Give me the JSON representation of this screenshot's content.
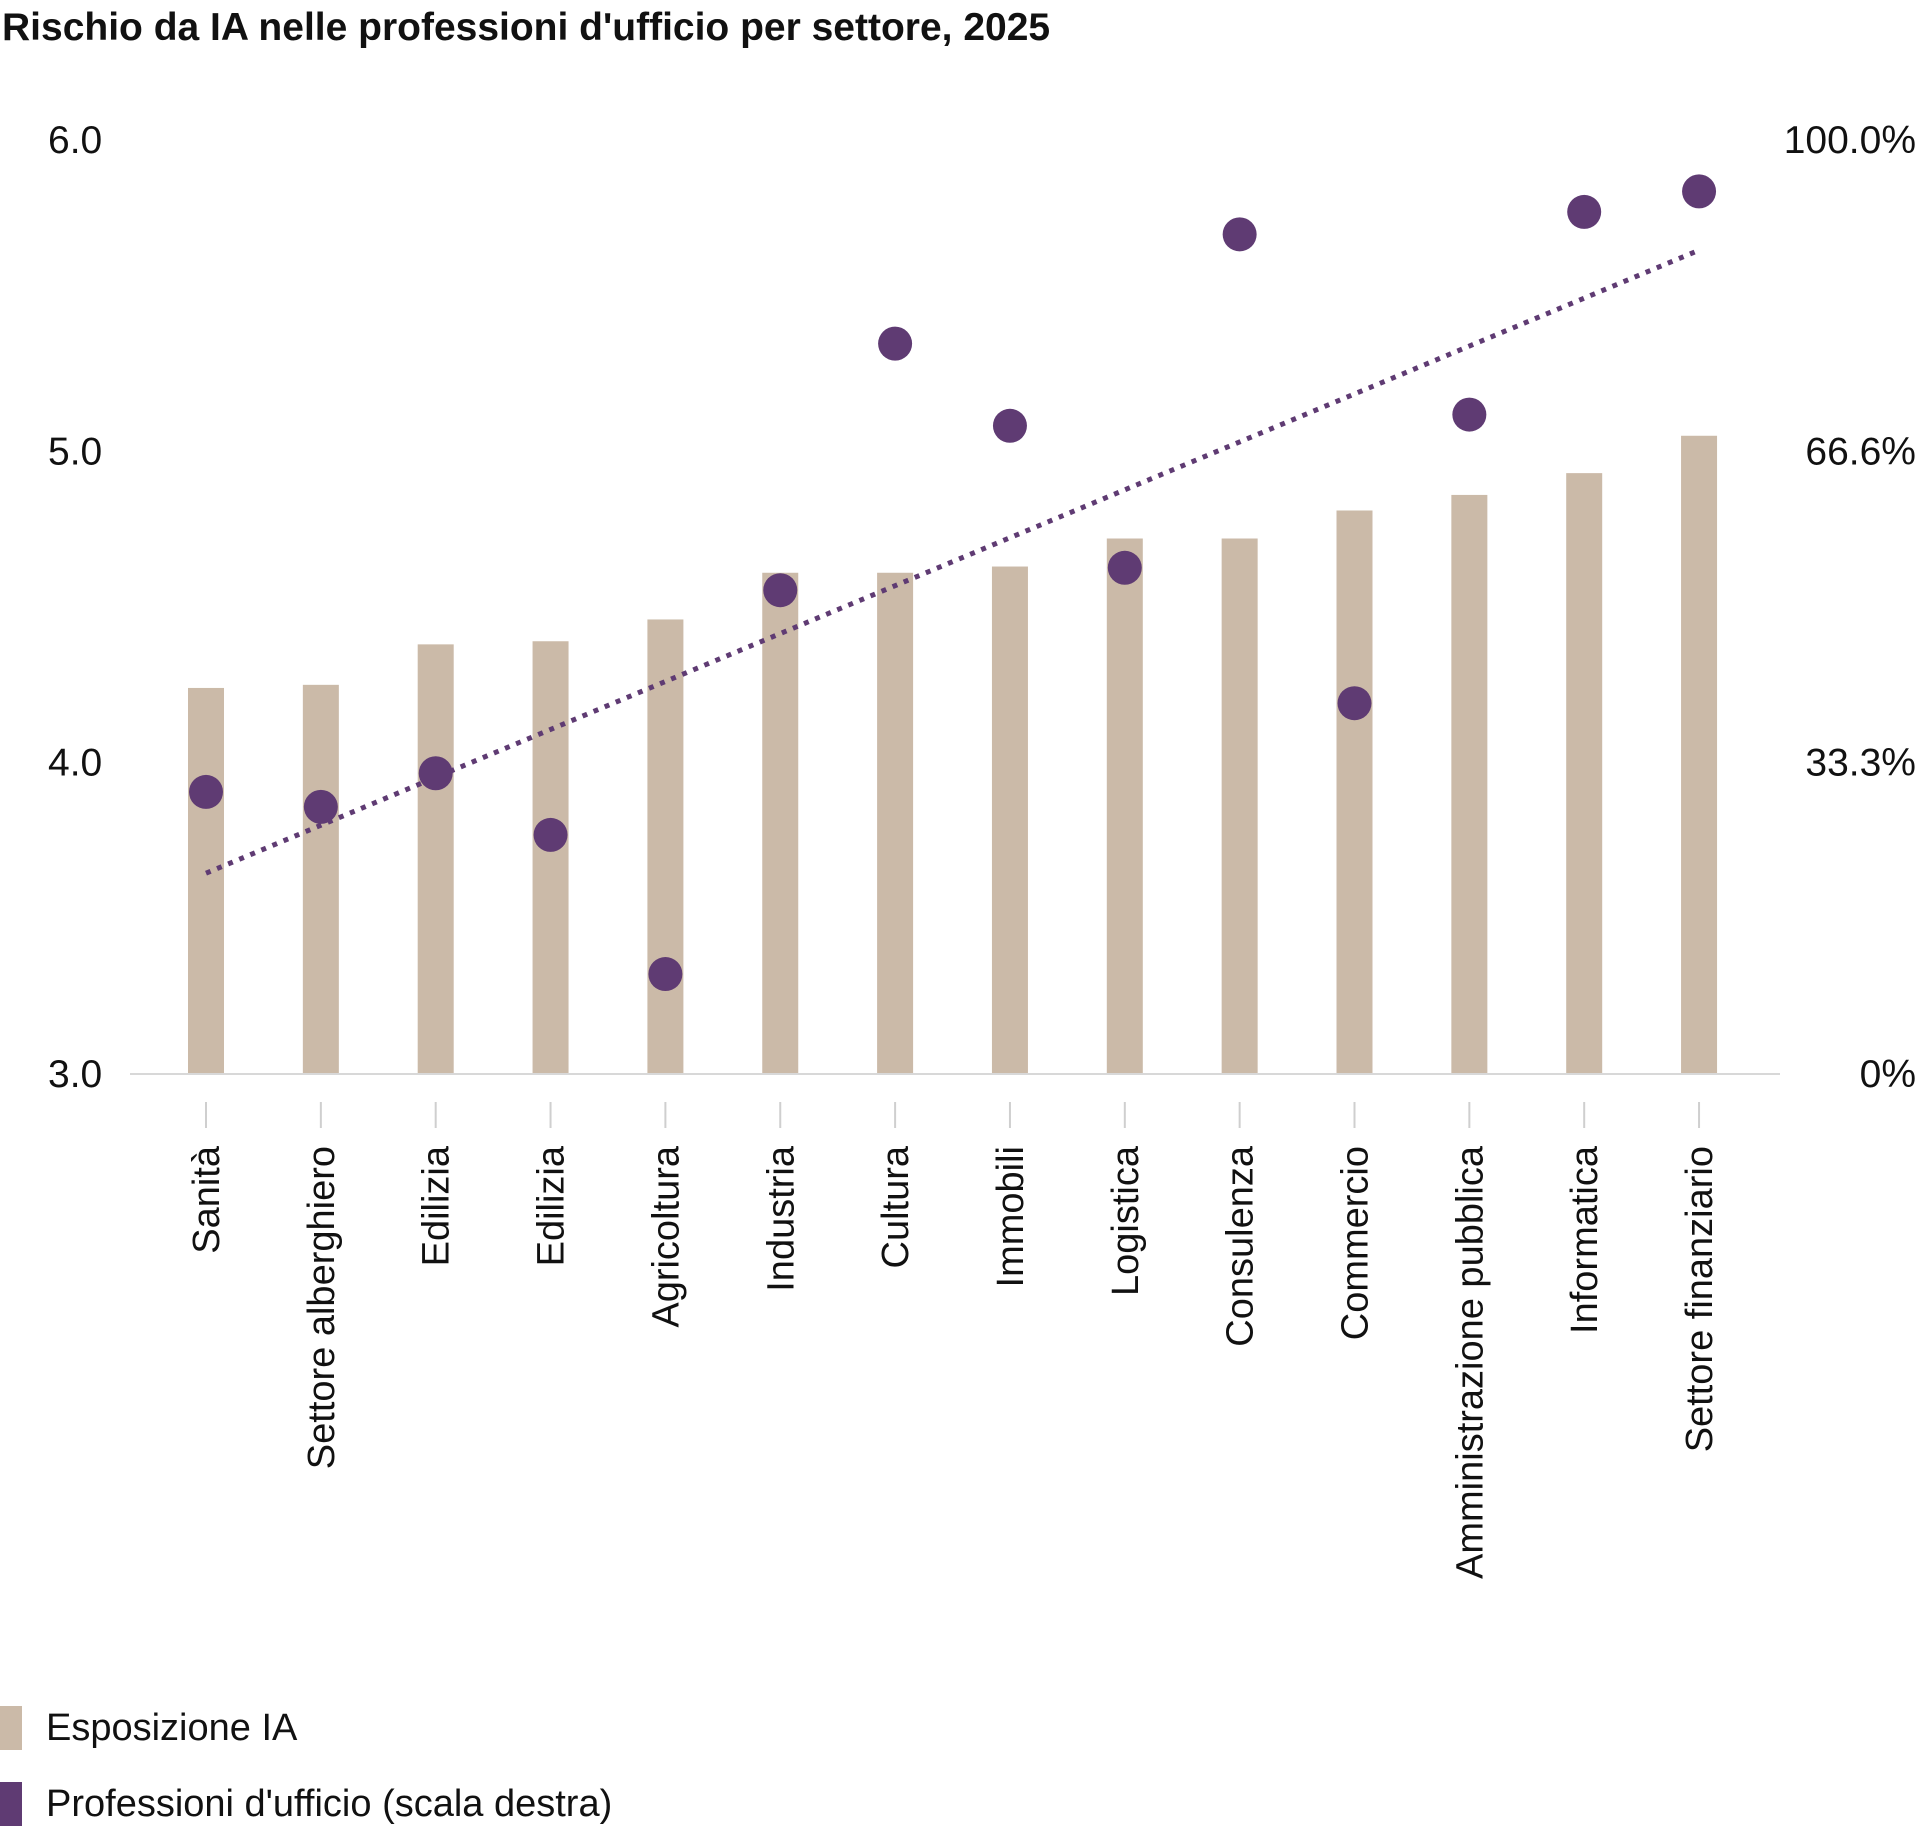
{
  "chart_data": {
    "type": "bar",
    "title": "Rischio da IA nelle professioni d'ufficio per settore, 2025",
    "categories": [
      "Sanità",
      "Settore alberghiero",
      "Edilizia",
      "Edilizia",
      "Agricoltura",
      "Industria",
      "Cultura",
      "Immobili",
      "Logistica",
      "Consulenza",
      "Commercio",
      "Amministrazione pubblica",
      "Informatica",
      "Settore finanziario"
    ],
    "series": [
      {
        "name": "Esposizione IA",
        "type": "bar",
        "axis": "left",
        "color": "#cbbaa8",
        "values": [
          4.24,
          4.25,
          4.38,
          4.39,
          4.46,
          4.61,
          4.61,
          4.63,
          4.72,
          4.72,
          4.81,
          4.86,
          4.93,
          5.05
        ]
      },
      {
        "name": "Professioni d'ufficio (scala destra)",
        "type": "scatter",
        "axis": "right",
        "color": "#5f3b73",
        "values": [
          30.2,
          28.6,
          32.2,
          25.6,
          10.7,
          51.8,
          78.2,
          69.4,
          54.2,
          89.9,
          39.7,
          70.6,
          92.3,
          94.5
        ]
      }
    ],
    "trendline": {
      "series": "Professioni d'ufficio (scala destra)",
      "style": "dotted",
      "color": "#5f3b73",
      "start": 21.5,
      "end": 88.2
    },
    "y_left": {
      "ylim": [
        3.0,
        6.0
      ],
      "ticks": [
        "3.0",
        "4.0",
        "5.0",
        "6.0"
      ]
    },
    "y_right": {
      "ylim": [
        0,
        100
      ],
      "ticks": [
        "0%",
        "33.3%",
        "66.6%",
        "100.0%"
      ]
    },
    "grid": false,
    "legend_position": "bottom-left"
  }
}
